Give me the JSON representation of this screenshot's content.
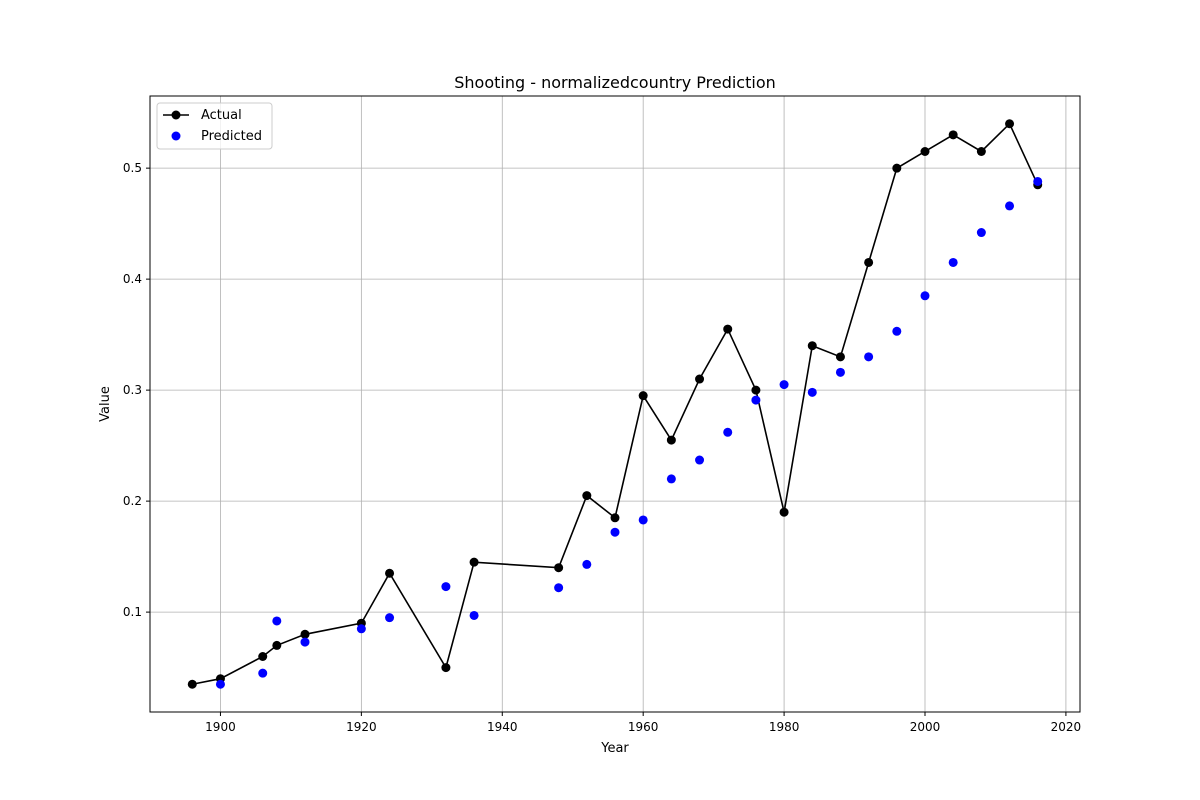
{
  "chart_data": {
    "type": "line",
    "title": "Shooting - normalizedcountry Prediction",
    "xlabel": "Year",
    "ylabel": "Value",
    "xlim": [
      1890,
      2022
    ],
    "ylim": [
      0.01,
      0.565
    ],
    "xticks": [
      1900,
      1920,
      1940,
      1960,
      1980,
      2000,
      2020
    ],
    "yticks": [
      0.1,
      0.2,
      0.3,
      0.4,
      0.5
    ],
    "grid": true,
    "legend_position": "upper-left",
    "series": [
      {
        "name": "Actual",
        "style": "line-with-markers",
        "color": "#000000",
        "x": [
          1896,
          1900,
          1906,
          1908,
          1912,
          1920,
          1924,
          1932,
          1936,
          1948,
          1952,
          1956,
          1960,
          1964,
          1968,
          1972,
          1976,
          1980,
          1984,
          1988,
          1992,
          1996,
          2000,
          2004,
          2008,
          2012,
          2016
        ],
        "y": [
          0.035,
          0.04,
          0.06,
          0.07,
          0.08,
          0.09,
          0.135,
          0.05,
          0.145,
          0.14,
          0.205,
          0.185,
          0.295,
          0.255,
          0.31,
          0.355,
          0.3,
          0.19,
          0.34,
          0.33,
          0.415,
          0.5,
          0.515,
          0.53,
          0.515,
          0.54,
          0.485
        ]
      },
      {
        "name": "Predicted",
        "style": "scatter",
        "color": "#0000ff",
        "x": [
          1900,
          1906,
          1908,
          1912,
          1920,
          1924,
          1932,
          1936,
          1948,
          1952,
          1956,
          1960,
          1964,
          1968,
          1972,
          1976,
          1980,
          1984,
          1988,
          1992,
          1996,
          2000,
          2004,
          2008,
          2012,
          2016
        ],
        "y": [
          0.035,
          0.045,
          0.092,
          0.073,
          0.085,
          0.095,
          0.123,
          0.097,
          0.122,
          0.143,
          0.172,
          0.183,
          0.22,
          0.237,
          0.262,
          0.291,
          0.305,
          0.298,
          0.316,
          0.33,
          0.353,
          0.385,
          0.415,
          0.442,
          0.466,
          0.488
        ]
      }
    ]
  }
}
